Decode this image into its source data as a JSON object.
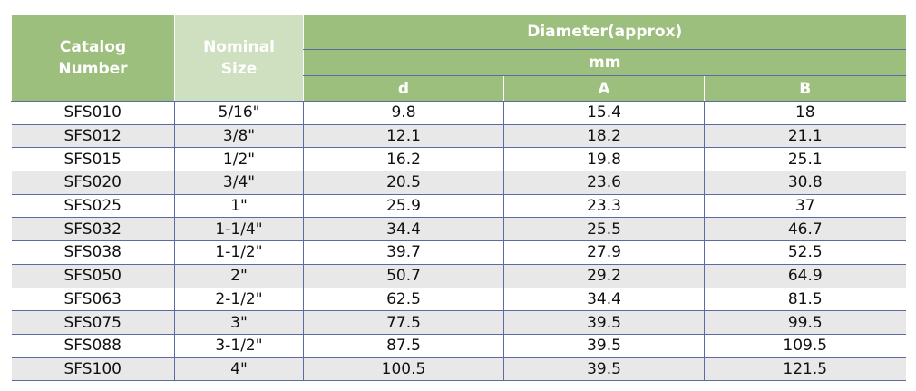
{
  "table": {
    "header": {
      "catalog": "Catalog Number",
      "nominal": "Nominal Size",
      "diameter": "Diameter(approx)",
      "unit": "mm",
      "columns": [
        "d",
        "A",
        "B"
      ]
    },
    "rows": [
      [
        "SFS010",
        "5/16\"",
        9.8,
        15.4,
        18
      ],
      [
        "SFS012",
        "3/8\"",
        12.1,
        18.2,
        21.1
      ],
      [
        "SFS015",
        "1/2\"",
        16.2,
        19.8,
        25.1
      ],
      [
        "SFS020",
        "3/4\"",
        20.5,
        23.6,
        30.8
      ],
      [
        "SFS025",
        "1\"",
        25.9,
        23.3,
        37
      ],
      [
        "SFS032",
        "1-1/4\"",
        34.4,
        25.5,
        46.7
      ],
      [
        "SFS038",
        "1-1/2\"",
        39.7,
        27.9,
        52.5
      ],
      [
        "SFS050",
        "2\"",
        50.7,
        29.2,
        64.9
      ],
      [
        "SFS063",
        "2-1/2\"",
        62.5,
        34.4,
        81.5
      ],
      [
        "SFS075",
        "3\"",
        77.5,
        39.5,
        99.5
      ],
      [
        "SFS088",
        "3-1/2\"",
        87.5,
        39.5,
        109.5
      ],
      [
        "SFS100",
        "4\"",
        100.5,
        39.5,
        121.5
      ]
    ]
  }
}
